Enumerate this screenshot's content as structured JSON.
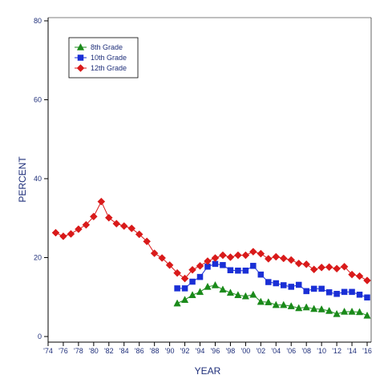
{
  "chart_data": {
    "type": "line",
    "xlabel": "YEAR",
    "ylabel": "PERCENT",
    "xlim": [
      1974,
      2016
    ],
    "ylim": [
      0,
      80
    ],
    "x_tick_labels": [
      "'74",
      "'76",
      "'78",
      "'80",
      "'82",
      "'84",
      "'86",
      "'88",
      "'90",
      "'92",
      "'94",
      "'96",
      "'98",
      "'00",
      "'02",
      "'04",
      "'06",
      "'08",
      "'10",
      "'12",
      "'14",
      "'16"
    ],
    "y_ticks": [
      0,
      20,
      40,
      60,
      80
    ],
    "grid": false,
    "legend_position": "top-left",
    "series": [
      {
        "name": "8th Grade",
        "color": "#1a8a1a",
        "marker": "triangle",
        "x": [
          1991,
          1992,
          1993,
          1994,
          1995,
          1996,
          1997,
          1998,
          1999,
          2000,
          2001,
          2002,
          2003,
          2004,
          2005,
          2006,
          2007,
          2008,
          2009,
          2010,
          2011,
          2012,
          2013,
          2014,
          2015,
          2016
        ],
        "values": [
          8.4,
          9.3,
          10.5,
          11.3,
          12.6,
          13.0,
          11.9,
          11.1,
          10.5,
          10.2,
          10.6,
          8.8,
          8.7,
          8.0,
          8.0,
          7.7,
          7.2,
          7.4,
          7.0,
          6.9,
          6.5,
          5.7,
          6.3,
          6.3,
          6.2,
          5.3
        ]
      },
      {
        "name": "10th Grade",
        "color": "#1a2fd6",
        "marker": "square",
        "x": [
          1991,
          1992,
          1993,
          1994,
          1995,
          1996,
          1997,
          1998,
          1999,
          2000,
          2001,
          2002,
          2003,
          2004,
          2005,
          2006,
          2007,
          2008,
          2009,
          2010,
          2011,
          2012,
          2013,
          2014,
          2015,
          2016
        ],
        "values": [
          12.2,
          12.2,
          13.9,
          15.1,
          17.7,
          18.4,
          18.1,
          16.8,
          16.7,
          16.7,
          17.9,
          15.7,
          13.8,
          13.5,
          13.0,
          12.6,
          13.1,
          11.5,
          12.1,
          12.1,
          11.2,
          10.8,
          11.3,
          11.3,
          10.6,
          9.9
        ]
      },
      {
        "name": "12th Grade",
        "color": "#d91a1a",
        "marker": "diamond",
        "x": [
          1975,
          1976,
          1977,
          1978,
          1979,
          1980,
          1981,
          1982,
          1983,
          1984,
          1985,
          1986,
          1987,
          1988,
          1989,
          1990,
          1991,
          1992,
          1993,
          1994,
          1995,
          1996,
          1997,
          1998,
          1999,
          2000,
          2001,
          2002,
          2003,
          2004,
          2005,
          2006,
          2007,
          2008,
          2009,
          2010,
          2011,
          2012,
          2013,
          2014,
          2015,
          2016
        ],
        "values": [
          26.3,
          25.4,
          26.0,
          27.2,
          28.3,
          30.4,
          34.2,
          30.1,
          28.6,
          28.0,
          27.4,
          25.9,
          24.1,
          21.1,
          19.9,
          18.1,
          16.1,
          14.7,
          16.9,
          17.9,
          19.1,
          19.9,
          20.6,
          20.1,
          20.6,
          20.6,
          21.5,
          21.0,
          19.7,
          20.2,
          19.8,
          19.4,
          18.5,
          18.3,
          17.0,
          17.5,
          17.6,
          17.2,
          17.7,
          15.7,
          15.3,
          14.2
        ]
      }
    ]
  }
}
